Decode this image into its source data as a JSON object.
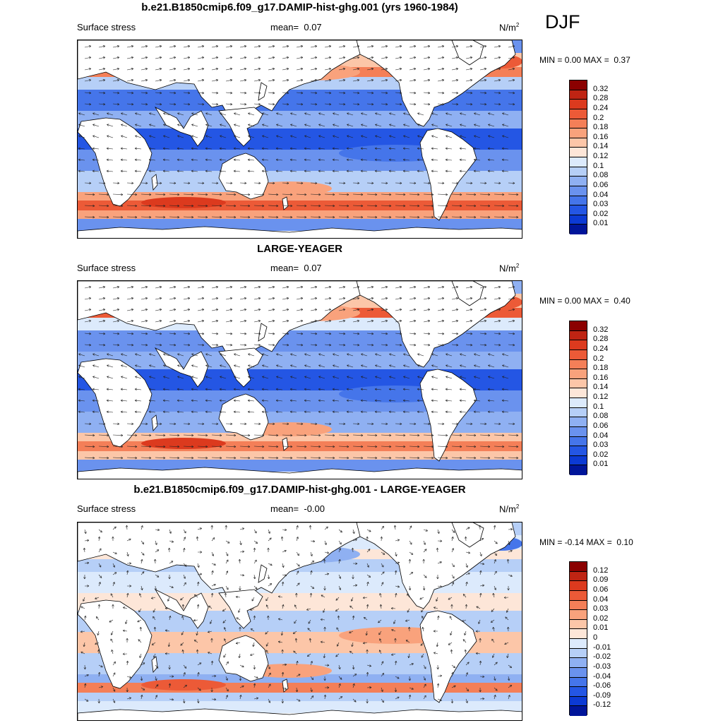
{
  "season": "DJF",
  "colors": {
    "reds": [
      "#fde6d8",
      "#fcc6a8",
      "#f9a27c",
      "#f47f58",
      "#ec5a37",
      "#dc3a1e",
      "#bf2413",
      "#8b0000"
    ],
    "blues": [
      "#dceafc",
      "#b6cff7",
      "#8fb0f2",
      "#6a92ee",
      "#4575ea",
      "#2456e4",
      "#0c3ad4",
      "#00159a"
    ]
  },
  "panels": [
    {
      "title": "b.e21.B1850cmip6.f09_g17.DAMIP-hist-ghg.001 (yrs 1960-1984)",
      "variable": "Surface stress",
      "mean_label": "mean=",
      "mean_value": "0.07",
      "units": "N/m",
      "units_exp": "2",
      "min_label": "MIN =",
      "min_value": "0.00",
      "max_label": "MAX =",
      "max_value": "0.37",
      "levels": [
        "0.32",
        "0.28",
        "0.24",
        "0.2",
        "0.18",
        "0.16",
        "0.14",
        "0.12",
        "0.1",
        "0.08",
        "0.06",
        "0.04",
        "0.03",
        "0.02",
        "0.01"
      ]
    },
    {
      "title": "LARGE-YEAGER",
      "variable": "Surface stress",
      "mean_label": "mean=",
      "mean_value": "0.07",
      "units": "N/m",
      "units_exp": "2",
      "min_label": "MIN =",
      "min_value": "0.00",
      "max_label": "MAX =",
      "max_value": "0.40",
      "levels": [
        "0.32",
        "0.28",
        "0.24",
        "0.2",
        "0.18",
        "0.16",
        "0.14",
        "0.12",
        "0.1",
        "0.08",
        "0.06",
        "0.04",
        "0.03",
        "0.02",
        "0.01"
      ]
    },
    {
      "title": "b.e21.B1850cmip6.f09_g17.DAMIP-hist-ghg.001 - LARGE-YEAGER",
      "variable": "Surface stress",
      "mean_label": "mean=",
      "mean_value": "-0.00",
      "units": "N/m",
      "units_exp": "2",
      "min_label": "MIN =",
      "min_value": "-0.14",
      "max_label": "MAX =",
      "max_value": "0.10",
      "levels": [
        "0.12",
        "0.09",
        "0.06",
        "0.04",
        "0.03",
        "0.02",
        "0.01",
        "0",
        "-0.01",
        "-0.02",
        "-0.03",
        "-0.04",
        "-0.06",
        "-0.09",
        "-0.12"
      ]
    }
  ]
}
